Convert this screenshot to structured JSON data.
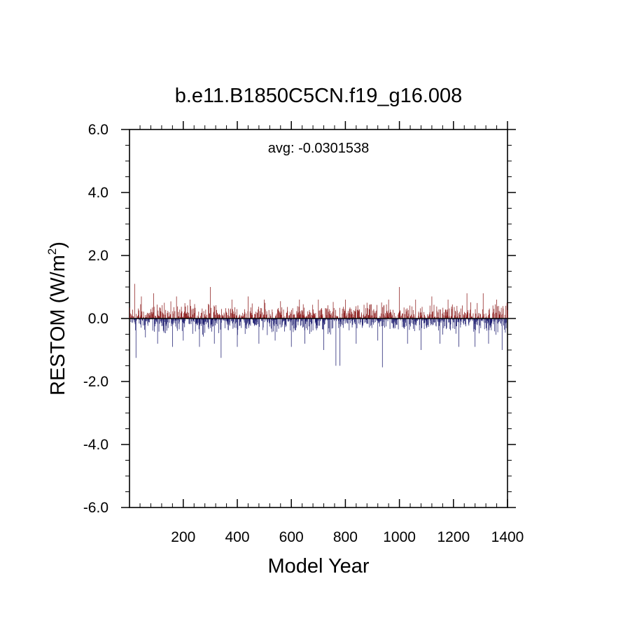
{
  "chart_data": {
    "type": "bar",
    "title": "b.e11.B1850C5CN.f19_g16.008",
    "xlabel": "Model Year",
    "ylabel_main": "RESTOM (W/m",
    "ylabel_sup": "2",
    "ylabel_close": ")",
    "annotation": "avg: -0.0301538",
    "xlim": [
      1,
      1400
    ],
    "ylim": [
      -6,
      6
    ],
    "x_ticks": [
      {
        "value": 200,
        "label": "200"
      },
      {
        "value": 400,
        "label": "400"
      },
      {
        "value": 600,
        "label": "600"
      },
      {
        "value": 800,
        "label": "800"
      },
      {
        "value": 1000,
        "label": "1000"
      },
      {
        "value": 1200,
        "label": "1200"
      },
      {
        "value": 1400,
        "label": "1400"
      }
    ],
    "y_ticks": [
      {
        "value": 6,
        "label": "6.0"
      },
      {
        "value": 4,
        "label": "4.0"
      },
      {
        "value": 2,
        "label": "2.0"
      },
      {
        "value": 0,
        "label": "0.0"
      },
      {
        "value": -2,
        "label": "-2.0"
      },
      {
        "value": -4,
        "label": "-4.0"
      },
      {
        "value": -6,
        "label": "-6.0"
      }
    ],
    "positive_color": "#8b1a1a",
    "negative_color": "#1a1a6e",
    "grid": false,
    "series": [
      {
        "approx_values": [
          [
            20,
            1.1
          ],
          [
            25,
            -1.25
          ],
          [
            45,
            0.7
          ],
          [
            60,
            -0.6
          ],
          [
            90,
            0.8
          ],
          [
            105,
            -0.8
          ],
          [
            130,
            0.5
          ],
          [
            160,
            -0.9
          ],
          [
            175,
            0.7
          ],
          [
            200,
            -0.7
          ],
          [
            225,
            0.6
          ],
          [
            260,
            -0.9
          ],
          [
            300,
            1.0
          ],
          [
            315,
            -0.8
          ],
          [
            340,
            -1.25
          ],
          [
            380,
            0.6
          ],
          [
            400,
            -0.9
          ],
          [
            440,
            0.7
          ],
          [
            480,
            -0.8
          ],
          [
            500,
            0.6
          ],
          [
            540,
            -0.7
          ],
          [
            560,
            0.55
          ],
          [
            600,
            -0.9
          ],
          [
            630,
            0.6
          ],
          [
            650,
            -0.8
          ],
          [
            700,
            0.6
          ],
          [
            720,
            -1.0
          ],
          [
            765,
            -1.5
          ],
          [
            780,
            -1.5
          ],
          [
            800,
            0.6
          ],
          [
            840,
            -0.8
          ],
          [
            880,
            0.5
          ],
          [
            920,
            -0.7
          ],
          [
            937,
            -1.55
          ],
          [
            960,
            0.6
          ],
          [
            1000,
            1.0
          ],
          [
            1030,
            -0.8
          ],
          [
            1060,
            0.6
          ],
          [
            1080,
            -1.0
          ],
          [
            1120,
            0.7
          ],
          [
            1150,
            -0.8
          ],
          [
            1180,
            0.6
          ],
          [
            1220,
            -0.9
          ],
          [
            1250,
            0.8
          ],
          [
            1280,
            -0.9
          ],
          [
            1310,
            0.8
          ],
          [
            1330,
            -0.8
          ],
          [
            1360,
            0.6
          ],
          [
            1380,
            -1.0
          ],
          [
            1398,
            0.5
          ]
        ],
        "baseline_spread": 0.45
      }
    ]
  }
}
